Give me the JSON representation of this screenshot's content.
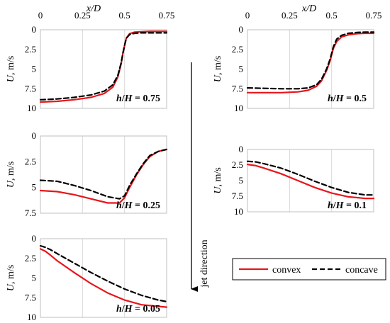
{
  "figure": {
    "jet_direction_label": "jet direction",
    "legend": [
      {
        "name": "convex",
        "color": "#e8151b",
        "dash": "solid"
      },
      {
        "name": "concave",
        "color": "#000000",
        "dash": "dashed"
      }
    ]
  },
  "chart_data": [
    {
      "type": "line",
      "id": "p075",
      "annotation_parts": [
        "h",
        "/",
        "H",
        " = 0.75"
      ],
      "xlabel": "x/D",
      "ylabel": "U, m/s",
      "xlim": [
        0,
        0.75
      ],
      "ylim": [
        0,
        10
      ],
      "y_inverted": true,
      "xticks": [
        "0",
        "0.25",
        "0.5",
        "0.75"
      ],
      "yticks": [
        "0",
        "2.5",
        "5",
        "7.5",
        "10"
      ],
      "x_axis_labels_top": true,
      "grid": "vertical",
      "series": [
        {
          "name": "convex",
          "x": [
            0,
            0.1,
            0.2,
            0.3,
            0.38,
            0.43,
            0.46,
            0.48,
            0.49,
            0.5,
            0.51,
            0.53,
            0.56,
            0.6,
            0.65,
            0.75
          ],
          "y": [
            9.2,
            9.1,
            8.9,
            8.6,
            8.1,
            7.3,
            6.0,
            4.3,
            3.0,
            2.0,
            1.1,
            0.5,
            0.3,
            0.25,
            0.2,
            0.2
          ]
        },
        {
          "name": "concave",
          "x": [
            0,
            0.1,
            0.2,
            0.3,
            0.38,
            0.43,
            0.46,
            0.48,
            0.49,
            0.5,
            0.51,
            0.53,
            0.56,
            0.6,
            0.65,
            0.75
          ],
          "y": [
            8.9,
            8.8,
            8.6,
            8.3,
            7.8,
            7.0,
            5.8,
            4.2,
            3.0,
            2.0,
            1.1,
            0.6,
            0.45,
            0.4,
            0.4,
            0.4
          ]
        }
      ]
    },
    {
      "type": "line",
      "id": "p05",
      "annotation_parts": [
        "h",
        "/",
        "H",
        " = 0.5"
      ],
      "xlabel": "x/D",
      "ylabel": "U, m/s",
      "xlim": [
        0,
        0.75
      ],
      "ylim": [
        0,
        10
      ],
      "y_inverted": true,
      "xticks": [
        "0",
        "0.25",
        "0.5",
        "0.75"
      ],
      "yticks": [
        "0",
        "2.5",
        "5",
        "7.5",
        "10"
      ],
      "x_axis_labels_top": true,
      "grid": "vertical",
      "series": [
        {
          "name": "convex",
          "x": [
            0,
            0.1,
            0.2,
            0.3,
            0.36,
            0.41,
            0.44,
            0.47,
            0.49,
            0.5,
            0.51,
            0.53,
            0.56,
            0.6,
            0.65,
            0.7,
            0.75
          ],
          "y": [
            8.0,
            8.0,
            8.0,
            7.9,
            7.7,
            7.2,
            6.5,
            5.2,
            4.0,
            3.2,
            2.4,
            1.5,
            0.9,
            0.65,
            0.5,
            0.45,
            0.45
          ]
        },
        {
          "name": "concave",
          "x": [
            0,
            0.1,
            0.2,
            0.3,
            0.36,
            0.41,
            0.44,
            0.47,
            0.49,
            0.5,
            0.51,
            0.53,
            0.56,
            0.6,
            0.65,
            0.7,
            0.75
          ],
          "y": [
            7.4,
            7.45,
            7.5,
            7.5,
            7.4,
            7.0,
            6.3,
            5.0,
            3.8,
            3.0,
            2.2,
            1.2,
            0.7,
            0.45,
            0.35,
            0.3,
            0.3
          ]
        }
      ]
    },
    {
      "type": "line",
      "id": "p025",
      "annotation_parts": [
        "h",
        "/",
        "H",
        " = 0.25"
      ],
      "xlabel": "",
      "ylabel": "U, m/s",
      "xlim": [
        0,
        0.75
      ],
      "ylim": [
        0,
        7.5
      ],
      "y_inverted": true,
      "xticks": [],
      "yticks": [
        "0",
        "2.5",
        "5",
        "7.5"
      ],
      "x_axis_labels_top": false,
      "grid": "vertical",
      "series": [
        {
          "name": "convex",
          "x": [
            0,
            0.1,
            0.2,
            0.3,
            0.4,
            0.47,
            0.5,
            0.53,
            0.57,
            0.61,
            0.65,
            0.7,
            0.75
          ],
          "y": [
            5.3,
            5.4,
            5.7,
            6.1,
            6.5,
            6.5,
            6.0,
            5.0,
            3.8,
            2.8,
            2.0,
            1.5,
            1.3
          ]
        },
        {
          "name": "concave",
          "x": [
            0,
            0.1,
            0.2,
            0.3,
            0.4,
            0.47,
            0.5,
            0.53,
            0.57,
            0.61,
            0.65,
            0.7,
            0.75
          ],
          "y": [
            4.3,
            4.4,
            4.8,
            5.3,
            5.9,
            6.1,
            5.8,
            4.8,
            3.7,
            2.7,
            1.9,
            1.5,
            1.3
          ]
        }
      ]
    },
    {
      "type": "line",
      "id": "p01",
      "annotation_parts": [
        "h",
        "/",
        "H",
        " = 0.1"
      ],
      "xlabel": "",
      "ylabel": "U, m/s",
      "xlim": [
        0,
        0.75
      ],
      "ylim": [
        0,
        10
      ],
      "y_inverted": true,
      "xticks": [],
      "yticks": [
        "0",
        "2.5",
        "5",
        "7.5",
        "10"
      ],
      "x_axis_labels_top": false,
      "grid": "vertical",
      "series": [
        {
          "name": "convex",
          "x": [
            0,
            0.05,
            0.1,
            0.2,
            0.3,
            0.4,
            0.5,
            0.6,
            0.7,
            0.75
          ],
          "y": [
            2.4,
            2.6,
            3.0,
            3.9,
            5.0,
            6.1,
            7.0,
            7.6,
            7.85,
            7.85
          ]
        },
        {
          "name": "concave",
          "x": [
            0,
            0.05,
            0.1,
            0.2,
            0.3,
            0.4,
            0.5,
            0.6,
            0.7,
            0.75
          ],
          "y": [
            1.9,
            2.0,
            2.3,
            3.0,
            4.0,
            5.1,
            6.1,
            6.9,
            7.3,
            7.3
          ]
        }
      ]
    },
    {
      "type": "line",
      "id": "p005",
      "annotation_parts": [
        "h",
        "/",
        "H",
        " = 0.05"
      ],
      "xlabel": "",
      "ylabel": "U, m/s",
      "xlim": [
        0,
        0.75
      ],
      "ylim": [
        0,
        10
      ],
      "y_inverted": true,
      "xticks": [],
      "yticks": [
        "0",
        "2.5",
        "5",
        "7.5",
        "10"
      ],
      "x_axis_labels_top": false,
      "grid": "vertical",
      "series": [
        {
          "name": "convex",
          "x": [
            0,
            0.03,
            0.06,
            0.1,
            0.2,
            0.3,
            0.4,
            0.5,
            0.6,
            0.7,
            0.75
          ],
          "y": [
            1.3,
            1.6,
            2.1,
            2.8,
            4.3,
            5.7,
            6.9,
            7.8,
            8.4,
            8.6,
            8.7
          ]
        },
        {
          "name": "concave",
          "x": [
            0,
            0.03,
            0.06,
            0.1,
            0.2,
            0.3,
            0.4,
            0.5,
            0.6,
            0.7,
            0.75
          ],
          "y": [
            0.9,
            1.1,
            1.4,
            1.9,
            3.1,
            4.3,
            5.4,
            6.4,
            7.2,
            7.8,
            8.0
          ]
        }
      ]
    }
  ]
}
